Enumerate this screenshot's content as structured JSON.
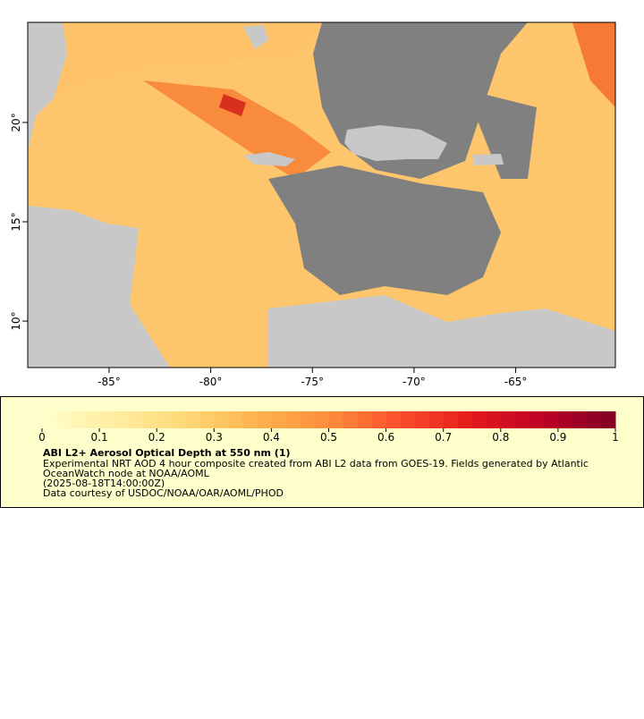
{
  "chart_data": {
    "type": "map",
    "xlim": [
      -89,
      -60.1
    ],
    "ylim": [
      7.66,
      25.04
    ],
    "xticks": [
      {
        "value": -85,
        "label": "-85°"
      },
      {
        "value": -80,
        "label": "-80°"
      },
      {
        "value": -75,
        "label": "-75°"
      },
      {
        "value": -70,
        "label": "-70°"
      },
      {
        "value": -65,
        "label": "-65°"
      }
    ],
    "yticks": [
      {
        "value": 10,
        "label": "10°"
      },
      {
        "value": 15,
        "label": "15°"
      },
      {
        "value": 20,
        "label": "20°"
      }
    ],
    "colorbar": {
      "range": [
        0,
        1
      ],
      "ticks": [
        0,
        0.1,
        0.2,
        0.3,
        0.4,
        0.5,
        0.6,
        0.7,
        0.8,
        0.9,
        1
      ],
      "colors": [
        "#ffffcc",
        "#ffeda0",
        "#fed976",
        "#feb24c",
        "#fd8d3c",
        "#fc4e2a",
        "#e31a1c",
        "#bd0026",
        "#800026"
      ]
    },
    "legend": {
      "title": "ABI L2+ Aerosol Optical Depth at 550 nm (1)",
      "lines": [
        "Experimental NRT AOD 4 hour composite created from ABI L2 data from GOES-19. Fields generated by Atlantic",
        "OceanWatch node at NOAA/AOML",
        "(2025-08-18T14:00:00Z)",
        "Data courtesy of USDOC/NOAA/OAR/AOML/PHOD"
      ]
    }
  }
}
